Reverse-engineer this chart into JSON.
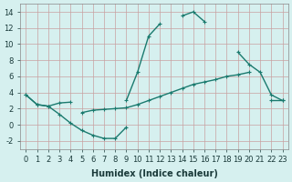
{
  "xlabel": "Humidex (Indice chaleur)",
  "x": [
    0,
    1,
    2,
    3,
    4,
    5,
    6,
    7,
    8,
    9,
    10,
    11,
    12,
    13,
    14,
    15,
    16,
    17,
    18,
    19,
    20,
    21,
    22,
    23
  ],
  "line1": [
    3.7,
    2.5,
    2.3,
    2.7,
    2.8,
    null,
    null,
    null,
    null,
    3.0,
    6.5,
    11.0,
    12.5,
    null,
    13.5,
    14.0,
    12.8,
    null,
    null,
    9.0,
    7.5,
    6.5,
    3.7,
    3.0
  ],
  "line2": [
    3.7,
    2.5,
    2.3,
    1.3,
    0.2,
    -0.7,
    -1.3,
    -1.7,
    -1.7,
    -0.3,
    null,
    null,
    null,
    null,
    null,
    null,
    null,
    null,
    null,
    null,
    null,
    null,
    null,
    null
  ],
  "line3": [
    null,
    null,
    null,
    null,
    null,
    1.5,
    1.8,
    1.9,
    2.0,
    2.1,
    2.5,
    3.0,
    3.5,
    4.0,
    4.5,
    5.0,
    5.3,
    5.6,
    6.0,
    6.2,
    6.5,
    null,
    null,
    null
  ],
  "line4_x": [
    22,
    23
  ],
  "line4_y": [
    3.0,
    3.0
  ],
  "color": "#1a7a6e",
  "bg_color": "#d6f0ef",
  "grid_color": "#c8a0a0",
  "ylim": [
    -3,
    15
  ],
  "xlim": [
    -0.5,
    23.5
  ]
}
